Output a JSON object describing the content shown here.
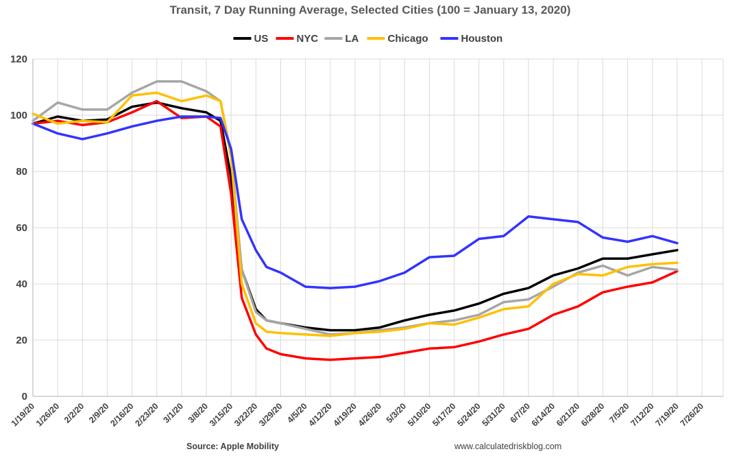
{
  "chart_data": {
    "type": "line",
    "title": "Transit, 7 Day Running Average, Selected Cities (100 = January 13, 2020)",
    "ylim": [
      0,
      120
    ],
    "yticks": [
      "0",
      "20",
      "40",
      "60",
      "80",
      "100",
      "120"
    ],
    "xlim": [
      "2020-01-19",
      "2020-08-01"
    ],
    "xticks": [
      "1/19/20",
      "1/26/20",
      "2/2/20",
      "2/9/20",
      "2/16/20",
      "2/23/20",
      "3/1/20",
      "3/8/20",
      "3/15/20",
      "3/22/20",
      "3/29/20",
      "4/5/20",
      "4/12/20",
      "4/19/20",
      "4/26/20",
      "5/3/20",
      "5/10/20",
      "5/17/20",
      "5/24/20",
      "5/31/20",
      "6/7/20",
      "6/14/20",
      "6/21/20",
      "6/28/20",
      "7/5/20",
      "7/12/20",
      "7/19/20",
      "7/26/20"
    ],
    "grid": "vertical-and-horizontal",
    "legend": "top-center",
    "source": "Source: Apple Mobility",
    "site": "www.calculatedriskblog.com",
    "x": [
      "1/19/20",
      "1/26/20",
      "2/2/20",
      "2/9/20",
      "2/16/20",
      "2/23/20",
      "3/1/20",
      "3/8/20",
      "3/12/20",
      "3/15/20",
      "3/18/20",
      "3/22/20",
      "3/25/20",
      "3/29/20",
      "4/5/20",
      "4/12/20",
      "4/19/20",
      "4/26/20",
      "5/3/20",
      "5/10/20",
      "5/17/20",
      "5/24/20",
      "5/31/20",
      "6/7/20",
      "6/14/20",
      "6/21/20",
      "6/28/20",
      "7/5/20",
      "7/12/20",
      "7/19/20"
    ],
    "series": [
      {
        "name": "US",
        "color": "#000000",
        "values": [
          97,
          99.5,
          98,
          98.5,
          103,
          104.5,
          102.5,
          101,
          98,
          78,
          45,
          31,
          27,
          26,
          24.5,
          23.5,
          23.5,
          24.5,
          27,
          29,
          30.5,
          33,
          36.5,
          38.5,
          43,
          45.5,
          49,
          49,
          50.5,
          52
        ]
      },
      {
        "name": "NYC",
        "color": "#ff0000",
        "values": [
          97,
          98,
          96.5,
          97.5,
          101,
          105,
          99,
          99.5,
          96,
          72,
          35,
          22,
          17,
          15,
          13.5,
          13,
          13.5,
          14,
          15.5,
          17,
          17.5,
          19.5,
          22,
          24,
          29,
          32,
          37,
          39,
          40.5,
          44.5
        ]
      },
      {
        "name": "LA",
        "color": "#a6a6a6",
        "values": [
          98,
          104.5,
          102,
          102,
          108,
          112,
          112,
          108.5,
          105,
          86,
          45,
          30,
          27,
          26,
          24,
          22,
          22.5,
          23.5,
          24.5,
          26,
          27,
          29,
          33.5,
          34.5,
          39,
          44,
          46.5,
          43,
          46,
          45
        ]
      },
      {
        "name": "Chicago",
        "color": "#ffc000",
        "values": [
          100.5,
          97,
          98,
          97.5,
          107,
          108,
          105,
          107,
          105,
          85,
          40,
          26,
          23,
          22.5,
          22,
          21.5,
          22.5,
          23,
          24,
          26,
          25.5,
          28,
          31,
          32,
          40,
          43.5,
          43,
          46,
          47,
          47.5
        ]
      },
      {
        "name": "Houston",
        "color": "#3333ff",
        "values": [
          97,
          93.5,
          91.5,
          93.5,
          96,
          98,
          99.5,
          99.5,
          99,
          88,
          63,
          52,
          46,
          44,
          39,
          38.5,
          39,
          41,
          44,
          49.5,
          50,
          56,
          57,
          64,
          63,
          62,
          56.5,
          55,
          57,
          54.5
        ]
      }
    ]
  }
}
